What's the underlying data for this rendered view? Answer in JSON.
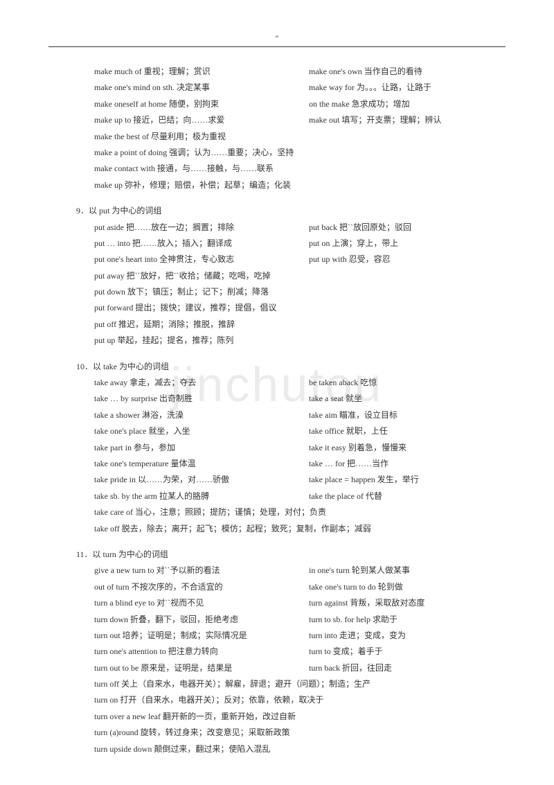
{
  "quote": "\"",
  "watermark": "jinchutou",
  "sections": [
    {
      "title": null,
      "rows": [
        {
          "l": "make much of 重视；理解；赏识",
          "r": "make one's own 当作自己的看待"
        },
        {
          "l": "make one's mind on sth. 决定某事",
          "r": "make way for 为。。。让路，让路于"
        },
        {
          "l": "make oneself at home 随便，别拘束",
          "r": "on the make 急求成功；增加"
        },
        {
          "l": "make up to 接近，巴结；向……求爱",
          "r": "make out 填写；开支票；理解；辨认"
        },
        {
          "l": "make the best of 尽量利用；极为重视",
          "r": ""
        },
        {
          "l": "make a point of doing 强调；认为……重要；决心，坚持",
          "r": ""
        },
        {
          "l": "make contact with 接通，与……接触，与……联系",
          "r": ""
        },
        {
          "l": "make up 弥补，修理；赔偿，补偿；起草；编造；化装",
          "r": ""
        }
      ]
    },
    {
      "title": "9．以 put 为中心的词组",
      "rows": [
        {
          "l": "put aside 把……放在一边；搁置；排除",
          "r": "put back 把``放回原处；驳回"
        },
        {
          "l": "put … into 把……放入；插入；翻译成",
          "r": "put on 上演；穿上，带上"
        },
        {
          "l": "put one's heart into 全神贯注，专心致志",
          "r": "put up with 忍受，容忍"
        },
        {
          "l": "put away 把``放好，把``收拾；储藏；吃喝，吃掉",
          "r": ""
        },
        {
          "l": "put down 放下；镇压；制止；记下；削减；降落",
          "r": ""
        },
        {
          "l": "put forward 提出；拨快；建议，推荐；提倡，倡议",
          "r": ""
        },
        {
          "l": "put off 推迟，延期；消除；推脱，推辞",
          "r": ""
        },
        {
          "l": "put up 举起，挂起；提名，推荐；陈列",
          "r": ""
        }
      ]
    },
    {
      "title": "10．以 take 为中心的词组",
      "rows": [
        {
          "l": "take away 拿走，减去；夺去",
          "r": "be taken aback 吃惊"
        },
        {
          "l": "take … by surprise 出奇制胜",
          "r": "take a seat 就坐"
        },
        {
          "l": "take a shower 淋浴，洗澡",
          "r": "take aim 瞄准，设立目标"
        },
        {
          "l": "take one's place 就坐，入坐",
          "r": "take office 就职，上任"
        },
        {
          "l": "take part in 参与，参加",
          "r": "take it easy 别着急，慢慢来"
        },
        {
          "l": "take one's temperature 量体温",
          "r": "take … for 把……当作"
        },
        {
          "l": "take pride in 以……为荣，对……骄傲",
          "r": "take place = happen 发生，举行"
        },
        {
          "l": "take sb. by the arm 拉某人的胳膊",
          "r": "take the place of 代替"
        },
        {
          "l": "take care of 当心，注意；照顾；提防；谨慎；处理，对付；负责",
          "r": ""
        },
        {
          "l": "take off 脱去，除去；离开；起飞；模仿；起程；致死；复制，作副本；减弱",
          "r": ""
        }
      ]
    },
    {
      "title": "11．以 turn 为中心的词组",
      "rows": [
        {
          "l": "give a new turn to 对``予以新的看法",
          "r": "in one's turn 轮到某人做某事"
        },
        {
          "l": "out of turn 不按次序的，不合适宜的",
          "r": "take one's turn to do 轮到做"
        },
        {
          "l": "turn a blind eye to 对``视而不见",
          "r": "turn against 背叛，采取敌对态度"
        },
        {
          "l": "turn down 折叠，翻下，驳回，拒绝考虑",
          "r": "turn to sb. for help 求助于"
        },
        {
          "l": "turn out 培养；证明是；制成；实际情况是",
          "r": "turn into 走进；变成，变为"
        },
        {
          "l": "turn one's attention to 把注意力转向",
          "r": "turn to 变成；着手于"
        },
        {
          "l": "turn out to be 原来是，证明是，结果是",
          "r": "turn back 折回，往回走"
        },
        {
          "l": "turn off 关上（自来水，电器开关）；解雇，辞退；避开（问题）；制造；生产",
          "r": ""
        },
        {
          "l": "turn on 打开（自来水，电器开关）；反对；依靠，依赖，取决于",
          "r": ""
        },
        {
          "l": "turn over a new leaf 翻开新的一页，重新开始，改过自新",
          "r": ""
        },
        {
          "l": "turn (a)round 旋转，转过身来；改变意见；采取新政策",
          "r": ""
        },
        {
          "l": "turn upside down 颠倒过来，翻过来；使陷入混乱",
          "r": ""
        }
      ]
    }
  ]
}
